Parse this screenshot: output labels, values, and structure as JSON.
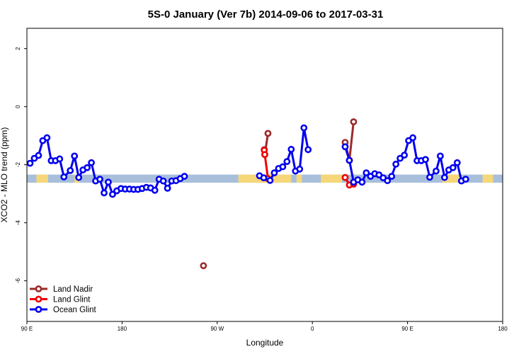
{
  "chart_data": {
    "type": "line",
    "title": "5S-0 January (Ver 7b)   2014-09-06 to 2017-03-31",
    "xlabel": "Longitude",
    "ylabel": "XCO2 - MLO trend (ppm)",
    "xlim": [
      90,
      540
    ],
    "ylim": [
      -7.4,
      2.7
    ],
    "x_ticks": [
      {
        "value": 90,
        "label": "90 E"
      },
      {
        "value": 180,
        "label": "180"
      },
      {
        "value": 270,
        "label": "90 W"
      },
      {
        "value": 360,
        "label": "0"
      },
      {
        "value": 450,
        "label": "90 E"
      },
      {
        "value": 540,
        "label": "180"
      }
    ],
    "y_ticks": [
      {
        "value": 2,
        "label": "2"
      },
      {
        "value": 0,
        "label": "0"
      },
      {
        "value": -2,
        "label": "-2"
      },
      {
        "value": -4,
        "label": "-4"
      },
      {
        "value": -6,
        "label": "-6"
      }
    ],
    "grid": false,
    "legend_position": "bottom-left",
    "band": {
      "y_min": -2.62,
      "y_max": -2.34,
      "ocean_color": "#a8bfdc",
      "land_color": "#f5d77a"
    },
    "land_segments": [
      [
        99,
        110
      ],
      [
        135,
        140
      ],
      [
        290,
        340
      ],
      [
        345,
        350
      ],
      [
        368,
        388
      ],
      [
        483,
        500
      ],
      [
        521,
        531
      ]
    ],
    "series": [
      {
        "name": "Land Nadir",
        "color": "#9b2a2a",
        "segments": [
          [
            [
              314.5,
              -1.48
            ],
            [
              315,
              -1.65
            ],
            [
              318,
              -0.92
            ]
          ],
          [
            [
              391,
              -1.23
            ],
            [
              395,
              -1.85
            ],
            [
              399,
              -0.52
            ]
          ],
          [
            [
              257,
              -5.48
            ]
          ]
        ]
      },
      {
        "name": "Land Glint",
        "color": "#ee0000",
        "segments": [
          [
            [
              314.5,
              -1.5
            ],
            [
              315,
              -1.65
            ],
            [
              318,
              -2.48
            ]
          ],
          [
            [
              391,
              -2.44
            ],
            [
              395,
              -2.7
            ],
            [
              399,
              -2.67
            ]
          ]
        ]
      },
      {
        "name": "Ocean Glint",
        "color": "#0000ee",
        "segments": [
          [
            [
              93,
              -1.95
            ],
            [
              97,
              -1.78
            ],
            [
              101,
              -1.68
            ],
            [
              105,
              -1.17
            ],
            [
              109,
              -1.07
            ],
            [
              113,
              -1.86
            ],
            [
              117,
              -1.86
            ],
            [
              121,
              -1.8
            ],
            [
              125,
              -2.42
            ],
            [
              131,
              -2.2
            ],
            [
              135,
              -1.7
            ],
            [
              139,
              -2.44
            ],
            [
              143,
              -2.18
            ],
            [
              147,
              -2.1
            ],
            [
              151,
              -1.93
            ],
            [
              155,
              -2.56
            ],
            [
              159,
              -2.5
            ],
            [
              163,
              -2.97
            ],
            [
              167,
              -2.6
            ],
            [
              171,
              -3.02
            ],
            [
              175,
              -2.9
            ],
            [
              179,
              -2.82
            ],
            [
              183,
              -2.84
            ],
            [
              187,
              -2.84
            ],
            [
              191,
              -2.85
            ],
            [
              195,
              -2.85
            ],
            [
              199,
              -2.82
            ],
            [
              203,
              -2.78
            ],
            [
              207,
              -2.8
            ],
            [
              211,
              -2.88
            ],
            [
              215,
              -2.5
            ],
            [
              219,
              -2.56
            ],
            [
              223,
              -2.81
            ],
            [
              227,
              -2.56
            ],
            [
              231,
              -2.55
            ],
            [
              235,
              -2.48
            ],
            [
              239,
              -2.4
            ]
          ],
          [
            [
              310,
              -2.38
            ],
            [
              314,
              -2.45
            ],
            [
              320,
              -2.54
            ],
            [
              324,
              -2.28
            ],
            [
              328,
              -2.13
            ],
            [
              332,
              -2.07
            ],
            [
              336,
              -1.89
            ],
            [
              340,
              -1.47
            ],
            [
              344,
              -2.22
            ],
            [
              348,
              -2.15
            ],
            [
              352,
              -0.73
            ],
            [
              356,
              -1.48
            ]
          ],
          [
            [
              391,
              -1.38
            ],
            [
              395,
              -1.85
            ],
            [
              399,
              -2.6
            ],
            [
              403,
              -2.52
            ],
            [
              407,
              -2.6
            ],
            [
              411,
              -2.28
            ],
            [
              415,
              -2.4
            ],
            [
              419,
              -2.31
            ],
            [
              423,
              -2.35
            ],
            [
              427,
              -2.45
            ],
            [
              431,
              -2.55
            ],
            [
              435,
              -2.4
            ],
            [
              439,
              -1.98
            ],
            [
              443,
              -1.78
            ],
            [
              447,
              -1.67
            ],
            [
              451,
              -1.17
            ],
            [
              455,
              -1.07
            ],
            [
              459,
              -1.86
            ],
            [
              463,
              -1.86
            ],
            [
              467,
              -1.82
            ],
            [
              471,
              -2.43
            ],
            [
              477,
              -2.22
            ],
            [
              481,
              -1.7
            ],
            [
              485,
              -2.44
            ],
            [
              489,
              -2.18
            ],
            [
              493,
              -2.1
            ],
            [
              497,
              -1.93
            ],
            [
              501,
              -2.56
            ],
            [
              505,
              -2.5
            ]
          ]
        ]
      }
    ]
  }
}
